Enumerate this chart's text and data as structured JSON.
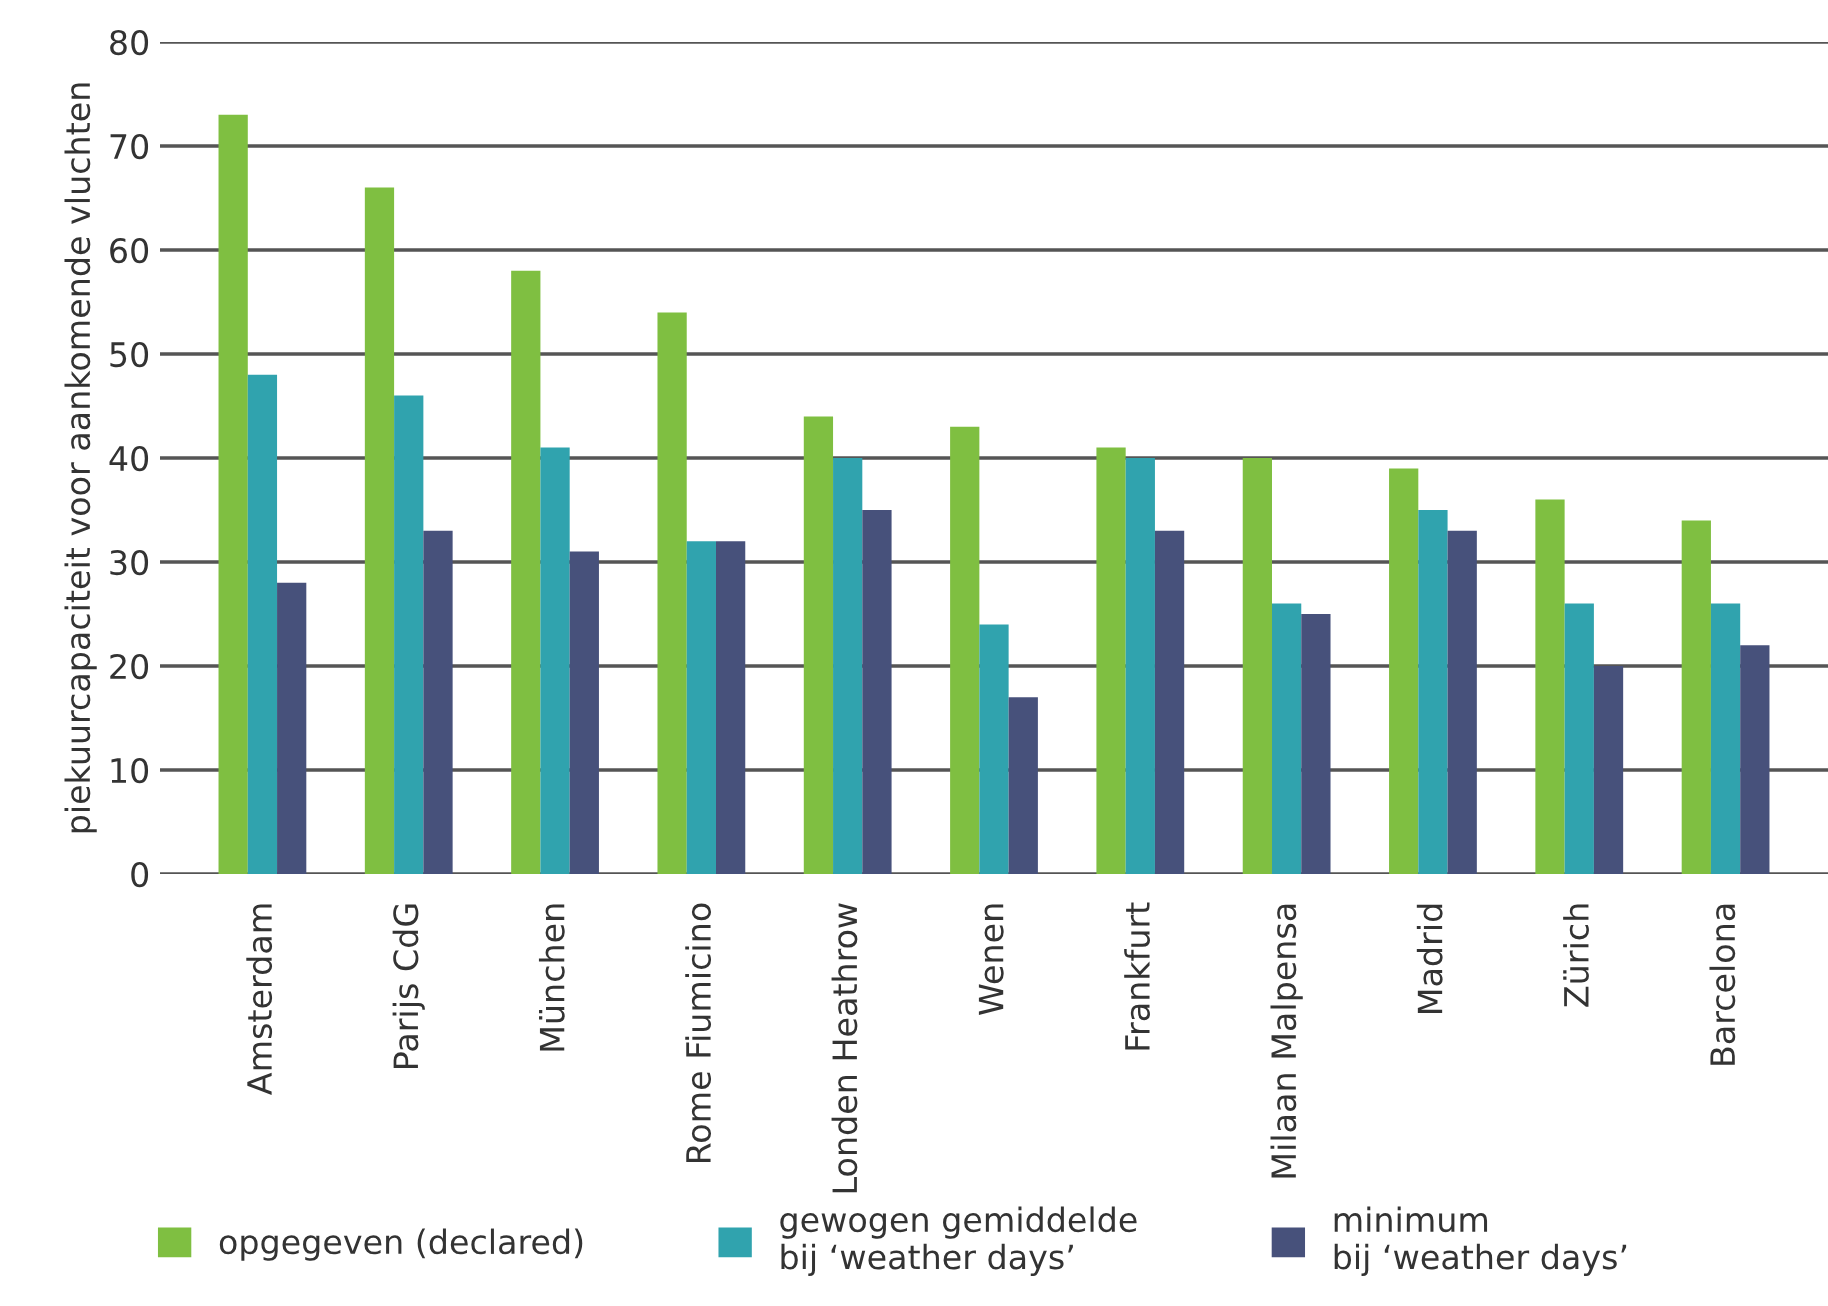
{
  "chart_data": {
    "type": "bar",
    "ylabel": "piekuurcapaciteit voor aankomende vluchten",
    "categories": [
      "Amsterdam",
      "Parijs CdG",
      "München",
      "Rome Fiumicino",
      "Londen Heathrow",
      "Wenen",
      "Frankfurt",
      "Milaan Malpensa",
      "Madrid",
      "Zürich",
      "Barcelona"
    ],
    "series": [
      {
        "name": "opgegeven (declared)",
        "color": "#7fbf41",
        "values": [
          73,
          66,
          58,
          54,
          44,
          43,
          41,
          40,
          39,
          36,
          34
        ]
      },
      {
        "name": "gewogen gemiddelde\nbij ‘weather days’",
        "color": "#30a3ae",
        "values": [
          48,
          46,
          41,
          32,
          40,
          24,
          40,
          26,
          35,
          26,
          26
        ]
      },
      {
        "name": "minimum\nbij ‘weather days’",
        "color": "#47517b",
        "values": [
          28,
          33,
          31,
          32,
          35,
          17,
          33,
          25,
          33,
          20,
          22
        ]
      }
    ],
    "ylim": [
      0,
      80
    ],
    "yticks": [
      0,
      10,
      20,
      30,
      40,
      50,
      60,
      70,
      80
    ],
    "grid": "y",
    "legend": "bottom"
  }
}
